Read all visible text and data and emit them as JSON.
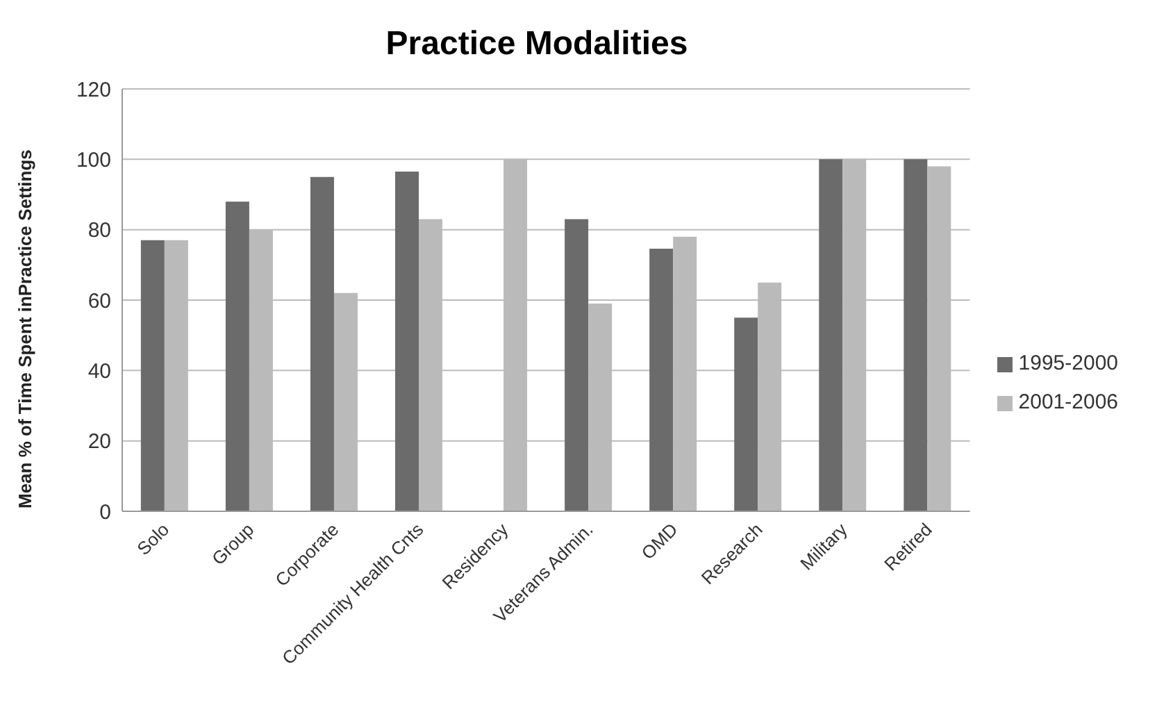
{
  "chart_data": {
    "type": "bar",
    "title": "Practice Modalities",
    "ylabel": "Mean % of Time Spent inPractice Settings",
    "categories": [
      "Solo",
      "Group",
      "Corporate",
      "Community Health Cnts",
      "Residency",
      "Veterans Admin.",
      "OMD",
      "Research",
      "Military",
      "Retired"
    ],
    "series": [
      {
        "name": "1995-2000",
        "color": "#6b6b6b",
        "values": [
          77,
          88,
          95,
          96.5,
          null,
          83,
          74.6,
          55,
          100,
          100
        ]
      },
      {
        "name": "2001-2006",
        "color": "#bababa",
        "values": [
          77,
          80,
          62,
          83,
          100,
          59,
          78,
          65,
          100,
          98
        ]
      }
    ],
    "ylim": [
      0,
      120
    ],
    "yticks": [
      0,
      20,
      40,
      60,
      80,
      100,
      120
    ],
    "grid": "y",
    "legend": "right"
  }
}
